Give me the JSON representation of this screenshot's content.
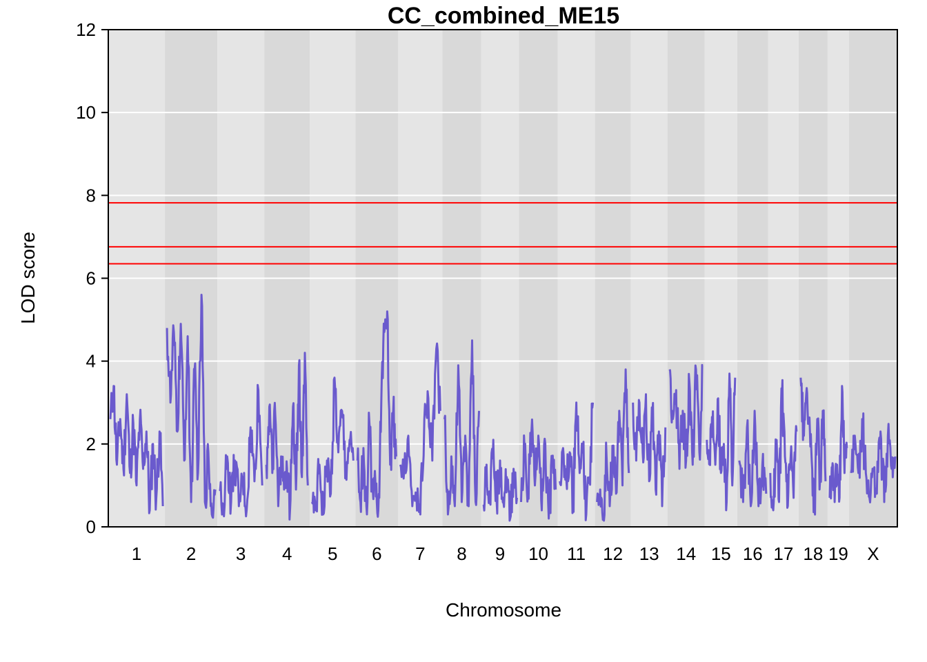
{
  "chart_data": {
    "type": "line",
    "title": "CC_combined_ME15",
    "xlabel": "Chromosome",
    "ylabel": "LOD score",
    "ylim": [
      0,
      12
    ],
    "yticks": [
      "0",
      "2",
      "4",
      "6",
      "8",
      "10",
      "12"
    ],
    "grid": true,
    "line_color": "#6A5ACD",
    "threshold_color": "#FF0000",
    "band_colors": [
      "#E5E5E5",
      "#D9D9D9"
    ],
    "thresholds": [
      7.82,
      6.76,
      6.35
    ],
    "chromosomes": [
      {
        "label": "1",
        "peaks": [
          2.6,
          3.4,
          1.5,
          2.6,
          1.4,
          3.2,
          1.3,
          2.5,
          1.0,
          2.6,
          1.4,
          2.3,
          0.4,
          2.0,
          0.7,
          2.3,
          0.5
        ]
      },
      {
        "label": "2",
        "peaks": [
          4.8,
          3.0,
          4.7,
          2.3,
          4.9,
          1.6,
          4.6,
          0.6,
          3.8,
          1.3,
          5.6,
          0.6,
          1.8,
          0.3,
          0.9
        ]
      },
      {
        "label": "3",
        "peaks": [
          0.9,
          0.5,
          1.7,
          0.6,
          1.6,
          0.5,
          1.2,
          0.4,
          2.4,
          1.1,
          3.3,
          1.0
        ]
      },
      {
        "label": "4",
        "peaks": [
          1.5,
          2.9,
          1.3,
          2.7,
          0.5,
          1.7,
          0.9,
          1.4,
          0.4,
          2.9,
          0.9,
          3.9,
          1.2,
          4.2,
          1.0
        ]
      },
      {
        "label": "5",
        "peaks": [
          0.6,
          0.4,
          1.5,
          0.3,
          1.6,
          0.8,
          3.6,
          1.8,
          2.8,
          1.3,
          2.1,
          1.6
        ]
      },
      {
        "label": "6",
        "peaks": [
          1.6,
          0.6,
          1.9,
          0.5,
          2.5,
          0.9,
          1.1,
          0.4,
          3.0,
          4.7,
          5.2,
          1.5,
          2.8,
          1.7
        ]
      },
      {
        "label": "7",
        "peaks": [
          1.5,
          1.4,
          2.2,
          0.5,
          0.8,
          0.3,
          2.6,
          3.1,
          1.6,
          4.3,
          2.8
        ]
      },
      {
        "label": "8",
        "peaks": [
          2.6,
          0.3,
          1.7,
          0.5,
          3.9,
          0.6,
          2.2,
          0.5,
          4.5,
          0.6,
          2.8
        ]
      },
      {
        "label": "9",
        "peaks": [
          0.5,
          1.5,
          0.6,
          2.1,
          0.6,
          1.6,
          0.6,
          1.2,
          0.2,
          1.4,
          0.7
        ]
      },
      {
        "label": "10",
        "peaks": [
          0.6,
          1.9,
          0.8,
          2.3,
          1.0,
          2.2,
          0.4,
          2.0,
          0.2,
          1.6,
          0.9
        ]
      },
      {
        "label": "11",
        "peaks": [
          1.1,
          1.9,
          1.1,
          1.8,
          0.5,
          3.0,
          1.3,
          1.9,
          0.3,
          1.2,
          3.0
        ]
      },
      {
        "label": "12",
        "peaks": [
          0.6,
          0.9,
          0.3,
          1.7,
          0.5,
          1.9,
          0.8,
          2.8,
          1.0,
          3.8,
          1.3
        ]
      },
      {
        "label": "13",
        "peaks": [
          3.0,
          1.6,
          3.0,
          1.8,
          3.2,
          1.1,
          2.8,
          0.9,
          2.3,
          0.5,
          2.4
        ]
      },
      {
        "label": "14",
        "peaks": [
          3.8,
          2.6,
          3.3,
          1.4,
          2.8,
          1.6,
          3.5,
          1.5,
          3.8,
          1.8,
          3.9
        ]
      },
      {
        "label": "15",
        "peaks": [
          2.1,
          1.7,
          2.5,
          1.5,
          3.1,
          1.3,
          2.0,
          0.6,
          3.7,
          1.0,
          3.6
        ]
      },
      {
        "label": "16",
        "peaks": [
          1.6,
          0.6,
          2.4,
          0.5,
          2.8,
          0.5,
          1.5,
          0.8
        ]
      },
      {
        "label": "17",
        "peaks": [
          1.3,
          0.4,
          1.9,
          0.6,
          3.2,
          1.7,
          0.5,
          1.7,
          0.7,
          2.3
        ]
      },
      {
        "label": "18",
        "peaks": [
          3.6,
          2.4,
          3.2,
          2.6,
          1.6,
          0.4,
          2.6,
          1.1,
          2.8,
          1.1
        ]
      },
      {
        "label": "19",
        "peaks": [
          0.7,
          1.4,
          0.6,
          1.5,
          0.7,
          3.4,
          1.3,
          1.9
        ]
      },
      {
        "label": "X",
        "peaks": [
          1.3,
          2.2,
          1.3,
          2.6,
          1.3,
          0.7,
          1.4,
          0.8,
          2.3,
          0.6,
          2.2,
          1.4,
          1.7
        ]
      }
    ]
  }
}
